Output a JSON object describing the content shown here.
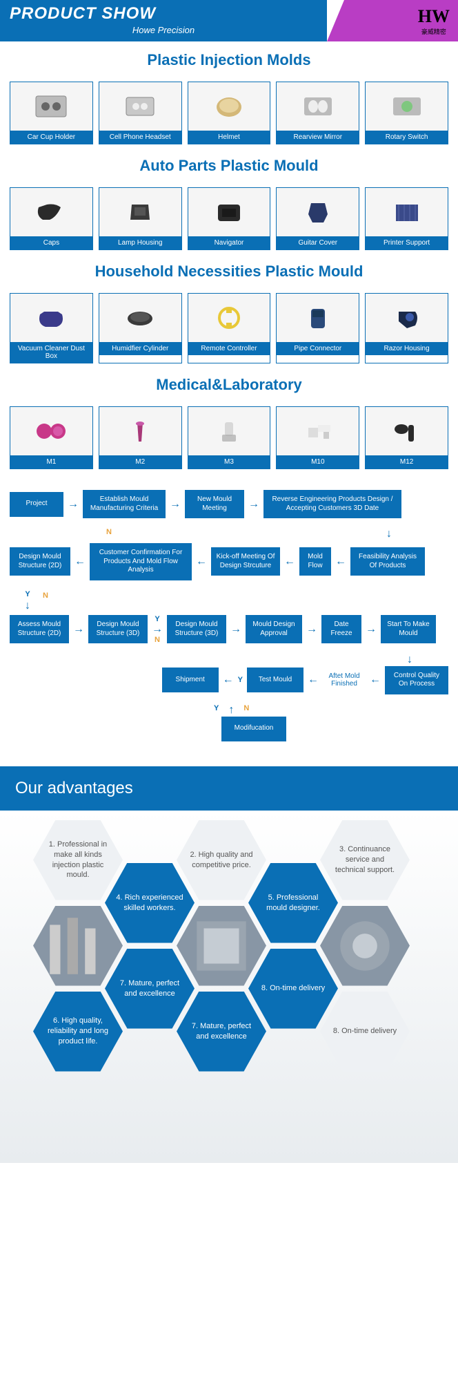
{
  "header": {
    "title": "PRODUCT SHOW",
    "subtitle": "Howe Precision",
    "logo": "HW",
    "logo_sub": "豪威精密"
  },
  "colors": {
    "primary": "#0a6fb5",
    "accent": "#b93dc4",
    "y": "#0a6fb5",
    "n": "#e8a33d"
  },
  "sections": [
    {
      "title": "Plastic Injection Molds",
      "items": [
        "Car Cup Holder",
        "Cell Phone Headset",
        "Helmet",
        "Rearview Mirror",
        "Rotary Switch"
      ]
    },
    {
      "title": "Auto Parts Plastic Mould",
      "items": [
        "Caps",
        "Lamp Housing",
        "Navigator",
        "Guitar Cover",
        "Printer Support"
      ]
    },
    {
      "title": "Household Necessities Plastic Mould",
      "items": [
        "Vacuum Cleaner Dust Box",
        "Humidfier Cylinder",
        "Remote Controller",
        "Pipe Connector",
        "Razor Housing"
      ]
    },
    {
      "title": "Medical&Laboratory",
      "items": [
        "M1",
        "M2",
        "M3",
        "M10",
        "M12"
      ]
    }
  ],
  "flow": {
    "r1": [
      "Project",
      "Establish Mould Manufacturing Criteria",
      "New Mould Meeting",
      "Reverse Engineering Products Design / Accepting Customers 3D Date"
    ],
    "r2": [
      "Design Mould Structure (2D)",
      "Customer Confirmation For Products And Mold Flow Analysis",
      "Kick-off Meeting Of Design Strcuture",
      "Mold Flow",
      "Feasibility Analysis Of Products"
    ],
    "r3": [
      "Assess Mould Structure (2D)",
      "Design Mould Structure (3D)",
      "Design Mould Structure (3D)",
      "Mould Design Approval",
      "Date Freeze",
      "Start To Make Mould"
    ],
    "r4": [
      "Shipment",
      "Test Mould",
      "Aftet Mold Finished",
      "Control Quality On Process"
    ],
    "r5": [
      "Modifucation"
    ]
  },
  "adv": {
    "title": "Our advantages",
    "items": [
      "1. Professional in make all kinds injection plastic mould.",
      "2. High quality and competitive price.",
      "3. Continuance service and technical support.",
      "4. Rich experienced skilled workers.",
      "5. Professional mould designer.",
      "6. High quality, reliability and long product life.",
      "7. Mature, perfect and excellence",
      "8. On-time delivery"
    ]
  }
}
